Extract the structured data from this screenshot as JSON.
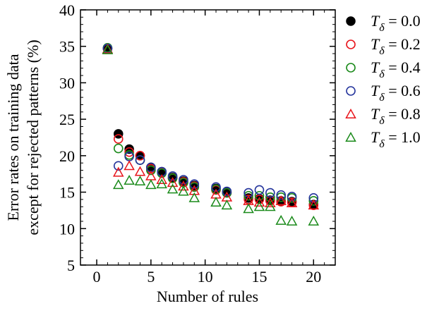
{
  "chart_data": {
    "type": "scatter",
    "title": "",
    "xlabel": "Number of rules",
    "ylabel_lines": [
      "Error rates on training data",
      "except for rejected patterns (%)"
    ],
    "xlim": [
      -1.5,
      22
    ],
    "ylim": [
      5,
      40
    ],
    "xticks": [
      0,
      5,
      10,
      15,
      20
    ],
    "yticks": [
      5,
      10,
      15,
      20,
      25,
      30,
      35,
      40
    ],
    "xtick_labels": [
      "0",
      "5",
      "10",
      "15",
      "20"
    ],
    "ytick_labels": [
      "5",
      "10",
      "15",
      "20",
      "25",
      "30",
      "35",
      "40"
    ],
    "grid": false,
    "legend_position": "right",
    "x": [
      1,
      2,
      3,
      4,
      5,
      6,
      7,
      8,
      9,
      11,
      12,
      14,
      15,
      16,
      17,
      18,
      20
    ],
    "series": [
      {
        "legend_symbol": "T",
        "legend_subscript": "δ",
        "legend_value": " = 0.0",
        "marker": "circle-filled",
        "color": "#000000",
        "values": [
          34.7,
          23.0,
          20.9,
          20.0,
          18.4,
          17.8,
          17.0,
          16.5,
          15.9,
          15.5,
          15.0,
          14.2,
          14.1,
          13.9,
          13.8,
          13.7,
          13.3
        ]
      },
      {
        "legend_symbol": "T",
        "legend_subscript": "δ",
        "legend_value": " = 0.2",
        "marker": "circle-open",
        "color": "#e8141b",
        "values": [
          34.7,
          22.3,
          20.5,
          20.0,
          18.2,
          17.7,
          16.9,
          16.4,
          15.8,
          15.3,
          14.9,
          14.0,
          14.0,
          13.8,
          13.7,
          13.6,
          13.2
        ]
      },
      {
        "legend_symbol": "T",
        "legend_subscript": "δ",
        "legend_value": " = 0.4",
        "marker": "circle-open",
        "color": "#1a8a1a",
        "values": [
          34.8,
          21.0,
          20.1,
          19.4,
          18.0,
          17.6,
          16.9,
          16.3,
          15.7,
          15.4,
          14.9,
          14.5,
          14.5,
          14.3,
          14.3,
          14.2,
          13.8
        ]
      },
      {
        "legend_symbol": "T",
        "legend_subscript": "δ",
        "legend_value": " = 0.6",
        "marker": "circle-open",
        "color": "#24349c",
        "values": [
          34.7,
          18.6,
          19.9,
          19.4,
          18.4,
          17.8,
          17.2,
          16.7,
          16.1,
          15.7,
          15.1,
          14.9,
          15.3,
          14.9,
          14.6,
          14.4,
          14.2
        ]
      },
      {
        "legend_symbol": "T",
        "legend_subscript": "δ",
        "legend_value": " = 0.8",
        "marker": "triangle-open",
        "color": "#e8141b",
        "values": [
          34.6,
          17.7,
          18.6,
          17.8,
          17.2,
          16.7,
          16.3,
          15.8,
          15.2,
          14.7,
          14.3,
          13.8,
          13.6,
          13.5,
          13.8,
          13.5,
          13.2
        ]
      },
      {
        "legend_symbol": "T",
        "legend_subscript": "δ",
        "legend_value": " = 1.0",
        "marker": "triangle-open",
        "color": "#1a8a1a",
        "values": [
          34.5,
          16.0,
          16.6,
          16.5,
          16.0,
          16.1,
          15.4,
          15.1,
          14.2,
          13.6,
          13.2,
          12.7,
          13.0,
          13.0,
          11.1,
          11.0,
          11.0
        ]
      }
    ]
  }
}
